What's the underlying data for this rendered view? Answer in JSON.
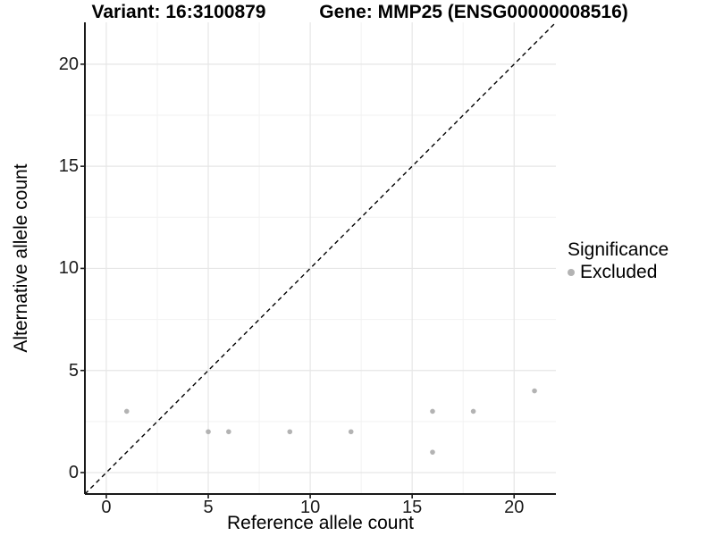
{
  "header": {
    "variant_title": "Variant: 16:3100879",
    "gene_title": "Gene: MMP25 (ENSG00000008516)"
  },
  "chart_data": {
    "type": "scatter",
    "xlabel": "Reference allele count",
    "ylabel": "Alternative allele count",
    "xlim": [
      -1.05,
      22.05
    ],
    "ylim": [
      -1.05,
      22.05
    ],
    "xticks": [
      0,
      5,
      10,
      15,
      20
    ],
    "yticks": [
      0,
      5,
      10,
      15,
      20
    ],
    "minor_grid_interval": 2.5,
    "grid": "major+minor",
    "identity_line": {
      "slope": 1,
      "intercept": 0,
      "style": "dashed",
      "color": "#000000"
    },
    "series": [
      {
        "name": "Excluded",
        "color": "#b3b3b3",
        "points": [
          [
            1,
            3
          ],
          [
            5,
            2
          ],
          [
            6,
            2
          ],
          [
            9,
            2
          ],
          [
            12,
            2
          ],
          [
            16,
            1
          ],
          [
            16,
            3
          ],
          [
            18,
            3
          ],
          [
            21,
            4
          ]
        ]
      }
    ],
    "legend": {
      "title": "Significance",
      "position": "right",
      "items": [
        {
          "label": "Excluded",
          "color": "#b3b3b3"
        }
      ]
    }
  },
  "colors": {
    "background": "#ffffff",
    "grid_major": "#e6e6e6",
    "grid_minor": "#f2f2f2",
    "axis_line": "#1a1a1a",
    "tick_text": "#1a1a1a",
    "point": "#b3b3b3"
  }
}
